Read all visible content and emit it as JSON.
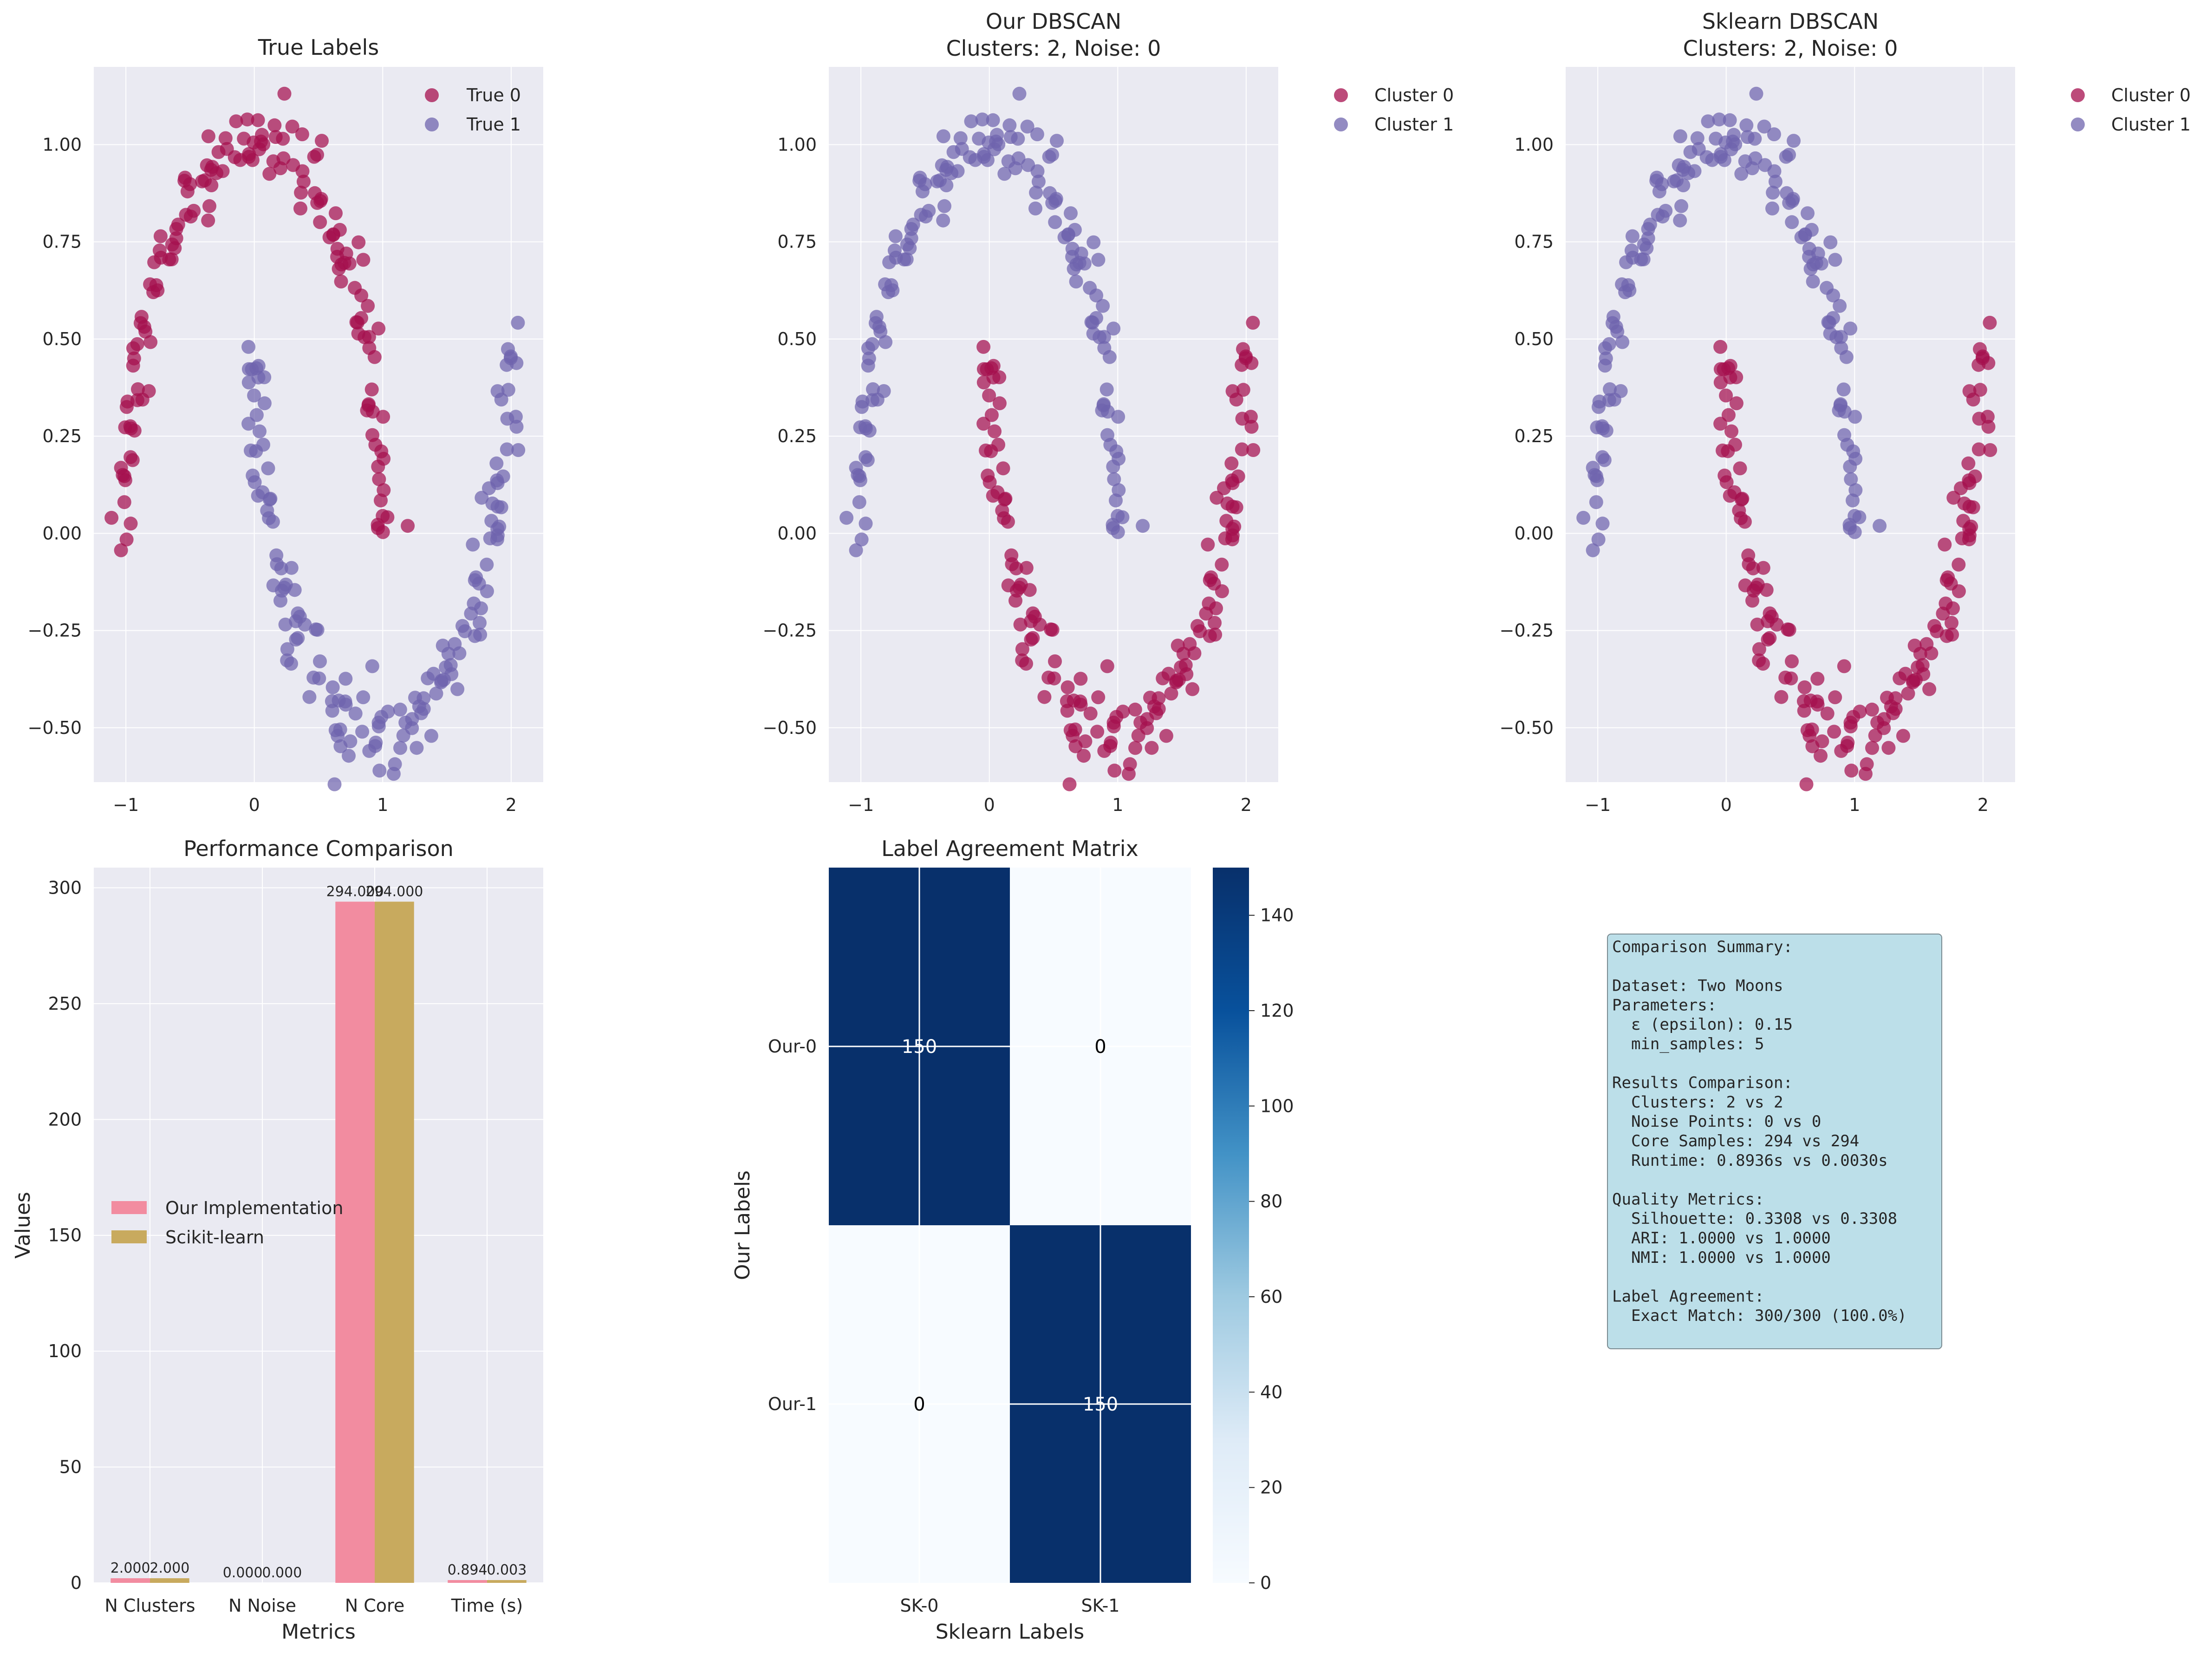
{
  "colors": {
    "class0": "#a50f4d",
    "class1": "#6f64ad",
    "bar_ours": "#f28ca0",
    "bar_sklearn": "#c8aa5e",
    "axes_bg": "#eaeaf2",
    "grid": "#ffffff",
    "heat_low": "#f7fbff",
    "heat_high": "#08306b",
    "summary_bg": "#bcdfe9"
  },
  "chart_data": [
    {
      "type": "scatter",
      "id": "true",
      "title": "True Labels",
      "legend": [
        "True 0",
        "True 1"
      ],
      "xlim": [
        -1.25,
        2.25
      ],
      "ylim": [
        -0.64,
        1.2
      ],
      "xticks": [
        "−1",
        "0",
        "1",
        "2"
      ],
      "yticks": [
        "−0.50",
        "−0.25",
        "0.00",
        "0.25",
        "0.50",
        "0.75",
        "1.00"
      ],
      "legend_position": "top-right"
    },
    {
      "type": "scatter",
      "id": "ours",
      "title": "Our DBSCAN",
      "subtitle": "Clusters: 2, Noise: 0",
      "legend": [
        "Cluster 0",
        "Cluster 1"
      ],
      "xlim": [
        -1.25,
        2.25
      ],
      "ylim": [
        -0.64,
        1.2
      ],
      "xticks": [
        "−1",
        "0",
        "1",
        "2"
      ],
      "yticks": [
        "−0.50",
        "−0.25",
        "0.00",
        "0.25",
        "0.50",
        "0.75",
        "1.00"
      ],
      "legend_position": "outside-right"
    },
    {
      "type": "scatter",
      "id": "sklearn",
      "title": "Sklearn DBSCAN",
      "subtitle": "Clusters: 2, Noise: 0",
      "legend": [
        "Cluster 0",
        "Cluster 1"
      ],
      "xlim": [
        -1.25,
        2.25
      ],
      "ylim": [
        -0.64,
        1.2
      ],
      "xticks": [
        "−1",
        "0",
        "1",
        "2"
      ],
      "yticks": [
        "−0.50",
        "−0.25",
        "0.00",
        "0.25",
        "0.50",
        "0.75",
        "1.00"
      ],
      "legend_position": "outside-right"
    },
    {
      "type": "bar",
      "id": "perf",
      "title": "Performance Comparison",
      "xlabel": "Metrics",
      "ylabel": "Values",
      "categories": [
        "N Clusters",
        "N Noise",
        "N Core",
        "Time (s)"
      ],
      "series": [
        {
          "name": "Our Implementation",
          "values": [
            2.0,
            0.0,
            294.0,
            0.894
          ],
          "labels": [
            "2.000",
            "0.000",
            "294.000",
            "0.894"
          ]
        },
        {
          "name": "Scikit-learn",
          "values": [
            2.0,
            0.0,
            294.0,
            0.003
          ],
          "labels": [
            "2.000",
            "0.000",
            "294.000",
            "0.003"
          ]
        }
      ],
      "ylim": [
        0,
        308.7
      ],
      "yticks": [
        "0",
        "50",
        "100",
        "150",
        "200",
        "250",
        "300"
      ],
      "legend_position": "center-left"
    },
    {
      "type": "heatmap",
      "id": "agreement",
      "title": "Label Agreement Matrix",
      "xlabel": "Sklearn Labels",
      "ylabel": "Our Labels",
      "x_categories": [
        "SK-0",
        "SK-1"
      ],
      "y_categories": [
        "Our-0",
        "Our-1"
      ],
      "values": [
        [
          150,
          0
        ],
        [
          0,
          150
        ]
      ],
      "colorbar_ticks": [
        "0",
        "20",
        "40",
        "60",
        "80",
        "100",
        "120",
        "140"
      ],
      "colorbar_range": [
        0,
        150
      ]
    }
  ],
  "summary": {
    "lines": [
      "Comparison Summary:",
      "",
      "Dataset: Two Moons",
      "Parameters:",
      "  ε (epsilon): 0.15",
      "  min_samples: 5",
      "",
      "Results Comparison:",
      "  Clusters: 2 vs 2",
      "  Noise Points: 0 vs 0",
      "  Core Samples: 294 vs 294",
      "  Runtime: 0.8936s vs 0.0030s",
      "",
      "Quality Metrics:",
      "  Silhouette: 0.3308 vs 0.3308",
      "  ARI: 1.0000 vs 1.0000",
      "  NMI: 1.0000 vs 1.0000",
      "",
      "Label Agreement:",
      "  Exact Match: 300/300 (100.0%)"
    ]
  }
}
